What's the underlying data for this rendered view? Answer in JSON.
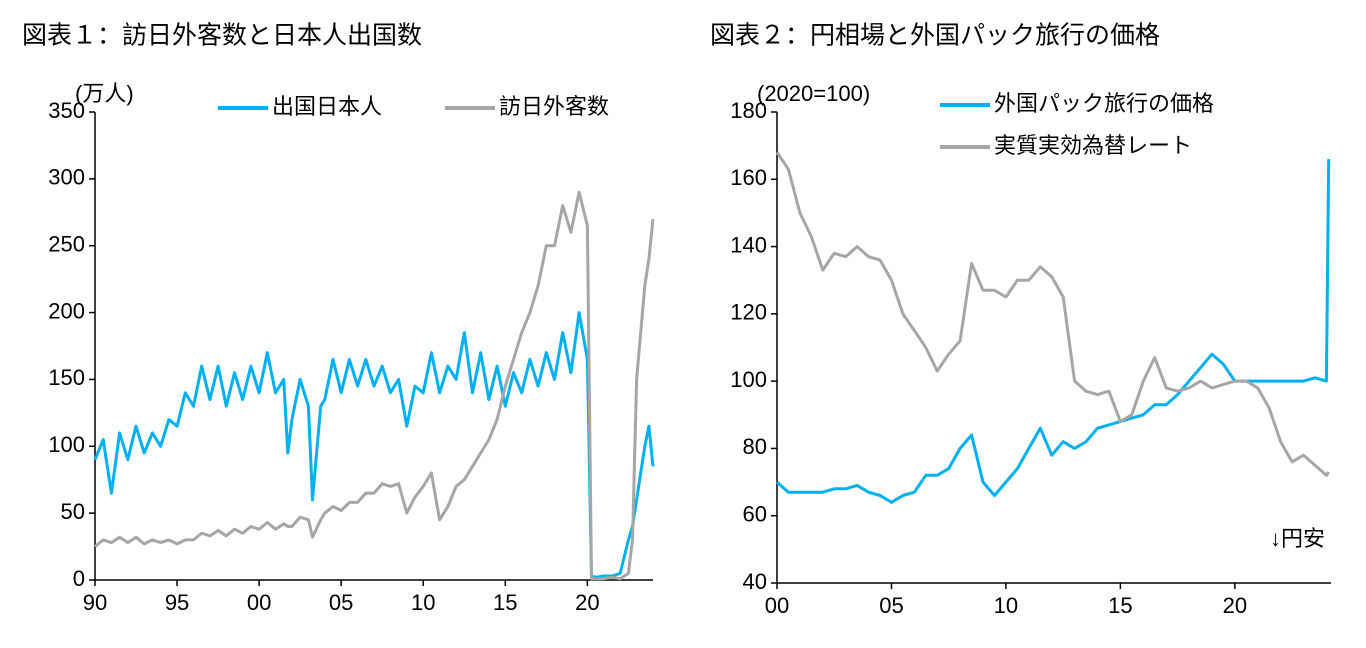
{
  "chart_data": [
    {
      "type": "line",
      "title": "図表１：訪日外客数と日本人出国数",
      "y_axis_label": "(万人)",
      "legend": "top-right",
      "x": [
        1990,
        1990.5,
        1991,
        1991.5,
        1992,
        1992.5,
        1993,
        1993.5,
        1994,
        1994.5,
        1995,
        1995.5,
        1996,
        1996.5,
        1997,
        1997.5,
        1998,
        1998.5,
        1999,
        1999.5,
        2000,
        2000.5,
        2001,
        2001.5,
        2001.75,
        2002,
        2002.5,
        2003,
        2003.25,
        2003.75,
        2004,
        2004.5,
        2005,
        2005.5,
        2006,
        2006.5,
        2007,
        2007.5,
        2008,
        2008.5,
        2009,
        2009.5,
        2010,
        2010.5,
        2011,
        2011.5,
        2012,
        2012.5,
        2013,
        2013.5,
        2014,
        2014.5,
        2015,
        2015.5,
        2016,
        2016.5,
        2017,
        2017.5,
        2018,
        2018.5,
        2019,
        2019.5,
        2020,
        2020.25,
        2020.5,
        2021,
        2021.5,
        2022,
        2022.5,
        2022.75,
        2023,
        2023.5,
        2023.75,
        2024
      ],
      "series": [
        {
          "name": "出国日本人",
          "color": "#00b0f0",
          "values": [
            90,
            105,
            65,
            110,
            90,
            115,
            95,
            110,
            100,
            120,
            115,
            140,
            130,
            160,
            135,
            160,
            130,
            155,
            135,
            160,
            140,
            170,
            140,
            150,
            95,
            120,
            150,
            130,
            60,
            130,
            135,
            165,
            140,
            165,
            145,
            165,
            145,
            160,
            140,
            150,
            115,
            145,
            140,
            170,
            140,
            160,
            150,
            185,
            140,
            170,
            135,
            160,
            130,
            155,
            140,
            165,
            145,
            170,
            150,
            185,
            155,
            200,
            165,
            3,
            2,
            3,
            3,
            5,
            30,
            40,
            60,
            100,
            115,
            85
          ]
        },
        {
          "name": "訪日外客数",
          "color": "#a6a6a6",
          "values": [
            25,
            30,
            28,
            32,
            28,
            32,
            27,
            30,
            28,
            30,
            27,
            30,
            30,
            35,
            33,
            37,
            33,
            38,
            35,
            40,
            38,
            43,
            38,
            42,
            40,
            40,
            47,
            45,
            32,
            45,
            50,
            55,
            52,
            58,
            58,
            65,
            65,
            72,
            70,
            72,
            50,
            62,
            70,
            80,
            45,
            55,
            70,
            75,
            85,
            95,
            105,
            120,
            145,
            165,
            185,
            200,
            220,
            250,
            250,
            280,
            260,
            290,
            265,
            1,
            1,
            1,
            2,
            1,
            5,
            30,
            150,
            220,
            240,
            270
          ]
        }
      ],
      "xlim": [
        1990,
        2024
      ],
      "ylim": [
        0,
        350
      ],
      "xticks": [
        {
          "value": 1990,
          "label": "90"
        },
        {
          "value": 1995,
          "label": "95"
        },
        {
          "value": 2000,
          "label": "00"
        },
        {
          "value": 2005,
          "label": "05"
        },
        {
          "value": 2010,
          "label": "10"
        },
        {
          "value": 2015,
          "label": "15"
        },
        {
          "value": 2020,
          "label": "20"
        }
      ],
      "yticks": [
        0,
        50,
        100,
        150,
        200,
        250,
        300,
        350
      ]
    },
    {
      "type": "line",
      "title": "図表２：円相場と外国パック旅行の価格",
      "y_axis_label": "(2020=100)",
      "legend": "top-left",
      "annotations": [
        "↓円安"
      ],
      "x": [
        2000,
        2000.5,
        2001,
        2001.5,
        2002,
        2002.5,
        2003,
        2003.5,
        2004,
        2004.5,
        2005,
        2005.5,
        2006,
        2006.5,
        2007,
        2007.5,
        2008,
        2008.5,
        2009,
        2009.5,
        2010,
        2010.5,
        2011,
        2011.5,
        2012,
        2012.5,
        2013,
        2013.5,
        2014,
        2014.5,
        2015,
        2015.5,
        2016,
        2016.5,
        2017,
        2017.5,
        2018,
        2018.5,
        2019,
        2019.5,
        2020,
        2020.5,
        2021,
        2021.5,
        2022,
        2022.5,
        2023,
        2023.5,
        2024,
        2024.1
      ],
      "series": [
        {
          "name": "外国パック旅行の価格",
          "color": "#00b0f0",
          "values": [
            70,
            67,
            67,
            67,
            67,
            68,
            68,
            69,
            67,
            66,
            64,
            66,
            67,
            72,
            72,
            74,
            80,
            84,
            70,
            66,
            70,
            74,
            80,
            86,
            78,
            82,
            80,
            82,
            86,
            87,
            88,
            89,
            90,
            93,
            93,
            96,
            100,
            104,
            108,
            105,
            100,
            100,
            100,
            100,
            100,
            100,
            100,
            101,
            100,
            166
          ]
        },
        {
          "name": "実質実効為替レート",
          "color": "#a6a6a6",
          "values": [
            168,
            163,
            150,
            143,
            133,
            138,
            137,
            140,
            137,
            136,
            130,
            120,
            115,
            110,
            103,
            108,
            112,
            135,
            127,
            127,
            125,
            130,
            130,
            134,
            131,
            125,
            100,
            97,
            96,
            97,
            88,
            90,
            100,
            107,
            98,
            97,
            98,
            100,
            98,
            99,
            100,
            100,
            98,
            92,
            82,
            76,
            78,
            75,
            72,
            73
          ]
        }
      ],
      "xlim": [
        2000,
        2024.2
      ],
      "ylim": [
        40,
        180
      ],
      "xticks": [
        {
          "value": 2000,
          "label": "00"
        },
        {
          "value": 2005,
          "label": "05"
        },
        {
          "value": 2010,
          "label": "10"
        },
        {
          "value": 2015,
          "label": "15"
        },
        {
          "value": 2020,
          "label": "20"
        }
      ],
      "yticks": [
        40,
        60,
        80,
        100,
        120,
        140,
        160,
        180
      ]
    }
  ]
}
